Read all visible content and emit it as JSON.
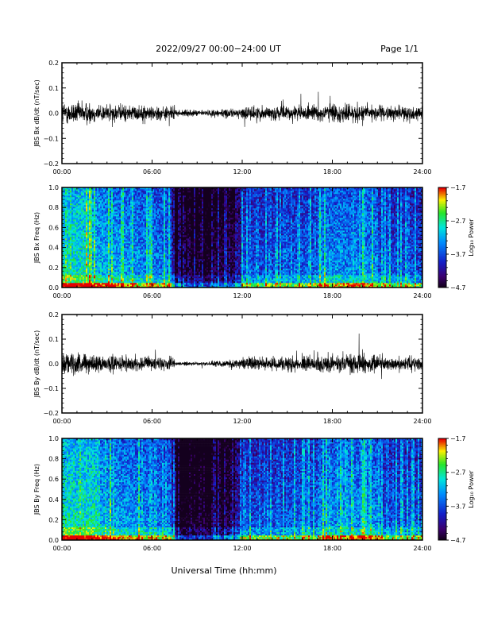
{
  "header": {
    "title": "2022/09/27  00:00−24:00 UT",
    "page": "Page 1/1"
  },
  "chart_data": [
    {
      "type": "line",
      "ylabel": "JBS Bx dB/dt (nT/sec)",
      "xlim": [
        0,
        24
      ],
      "ylim": [
        -0.2,
        0.2
      ],
      "x_ticks": [
        "00:00",
        "06:00",
        "12:00",
        "18:00",
        "24:00"
      ],
      "y_ticks": [
        "0.2",
        "0.1",
        "0.0",
        "−0.1",
        "−0.2"
      ],
      "color": "#000000"
    },
    {
      "type": "heatmap",
      "ylabel": "JBS Bx Freq (Hz)",
      "xlim": [
        0,
        24
      ],
      "ylim": [
        0,
        1.0
      ],
      "x_ticks": [
        "00:00",
        "06:00",
        "12:00",
        "18:00",
        "24:00"
      ],
      "y_ticks": [
        "1.0",
        "0.8",
        "0.6",
        "0.4",
        "0.2",
        "0.0"
      ],
      "colorbar": {
        "label": "Log₁₀ Power",
        "ticks": [
          "−1.7",
          "−2.7",
          "−3.7",
          "−4.7"
        ],
        "range": [
          -4.7,
          -1.7
        ]
      }
    },
    {
      "type": "line",
      "ylabel": "JBS By dB/dt (nT/sec)",
      "xlim": [
        0,
        24
      ],
      "ylim": [
        -0.2,
        0.2
      ],
      "x_ticks": [
        "00:00",
        "06:00",
        "12:00",
        "18:00",
        "24:00"
      ],
      "y_ticks": [
        "0.2",
        "0.1",
        "0.0",
        "−0.1",
        "−0.2"
      ],
      "color": "#000000"
    },
    {
      "type": "heatmap",
      "ylabel": "JBS By Freq (Hz)",
      "xlim": [
        0,
        24
      ],
      "ylim": [
        0,
        1.0
      ],
      "x_ticks": [
        "00:00",
        "06:00",
        "12:00",
        "18:00",
        "24:00"
      ],
      "y_ticks": [
        "1.0",
        "0.8",
        "0.6",
        "0.4",
        "0.2",
        "0.0"
      ],
      "colorbar": {
        "label": "Log₁₀ Power",
        "ticks": [
          "−1.7",
          "−2.7",
          "−3.7",
          "−4.7"
        ],
        "range": [
          -4.7,
          -1.7
        ]
      }
    }
  ],
  "xaxis_label": "Universal Time (hh:mm)"
}
